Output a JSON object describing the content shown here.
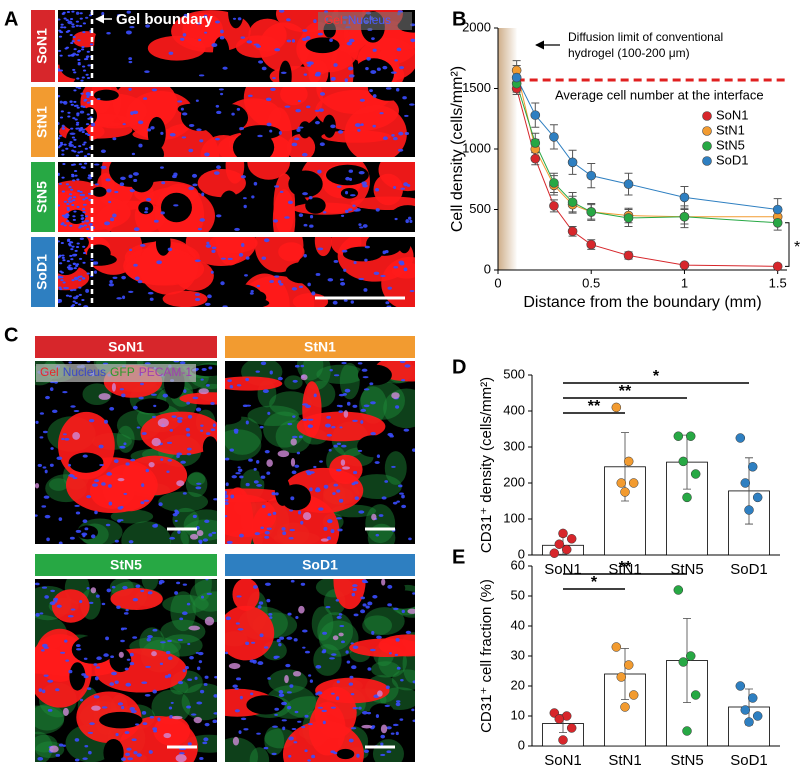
{
  "figure": {
    "panel_labels": [
      "A",
      "B",
      "C",
      "D",
      "E"
    ],
    "group_colors": [
      "#d7262b",
      "#f29b30",
      "#27a844",
      "#2e7fc1"
    ],
    "panel_a": {
      "rows": [
        "SoN1",
        "StN1",
        "StN5",
        "SoD1"
      ],
      "boundary_label": "Gel boundary",
      "legend": [
        {
          "text": "Gel",
          "color": "#ff3030"
        },
        {
          "text": "Nucleus",
          "color": "#4a5cff"
        }
      ]
    },
    "panel_c": {
      "panels": [
        "SoN1",
        "StN1",
        "StN5",
        "SoD1"
      ],
      "legend": [
        {
          "text": "Gel",
          "color": "#e8262b"
        },
        {
          "text": "Nucleus",
          "color": "#3a48c8"
        },
        {
          "text": "GFP",
          "color": "#2a9a2a"
        },
        {
          "text": "PECAM-1",
          "color": "#a040b0"
        }
      ]
    }
  },
  "chart_data": [
    {
      "type": "line",
      "xlabel": "Distance from the boundary (mm)",
      "ylabel": "Cell density (cells/mm²)",
      "x": [
        0.1,
        0.2,
        0.3,
        0.4,
        0.5,
        0.7,
        1.0,
        1.5
      ],
      "series": [
        {
          "name": "SoN1",
          "color": "#d7262b",
          "values": [
            1500,
            920,
            530,
            320,
            210,
            120,
            40,
            30
          ],
          "errors": [
            50,
            50,
            50,
            40,
            40,
            30,
            15,
            10
          ]
        },
        {
          "name": "StN1",
          "color": "#f29b30",
          "values": [
            1650,
            1000,
            700,
            540,
            480,
            450,
            440,
            440
          ],
          "errors": [
            80,
            80,
            80,
            70,
            60,
            60,
            60,
            60
          ]
        },
        {
          "name": "StN5",
          "color": "#27a844",
          "values": [
            1540,
            1050,
            720,
            560,
            480,
            430,
            440,
            390
          ],
          "errors": [
            70,
            80,
            80,
            80,
            70,
            70,
            90,
            60
          ]
        },
        {
          "name": "SoD1",
          "color": "#2e7fc1",
          "values": [
            1590,
            1280,
            1100,
            890,
            780,
            710,
            600,
            500
          ],
          "errors": [
            100,
            100,
            100,
            100,
            100,
            90,
            90,
            90
          ]
        }
      ],
      "xlim": [
        0,
        1.55
      ],
      "ylim": [
        0,
        2000
      ],
      "xticks": [
        0,
        0.5,
        1,
        1.5
      ],
      "yticks": [
        0,
        500,
        1000,
        1500,
        2000
      ],
      "shaded_range": [
        0,
        0.1
      ],
      "reference_line": {
        "value": 1570,
        "color": "#e02020",
        "label": "Average cell number at the interface"
      },
      "annotation": [
        "Diffusion limit of conventional",
        "hydrogel (100-200 μm)"
      ],
      "significance": "*",
      "legend": "right"
    },
    {
      "type": "bar",
      "ylabel": "CD31⁺ density (cells/mm²)",
      "categories": [
        "SoN1",
        "StN1",
        "StN5",
        "SoD1"
      ],
      "colors": [
        "#d7262b",
        "#f29b30",
        "#27a844",
        "#2e7fc1"
      ],
      "values": [
        27,
        245,
        258,
        178
      ],
      "errors": [
        25,
        95,
        75,
        92
      ],
      "points": [
        [
          5,
          15,
          30,
          45,
          60
        ],
        [
          410,
          260,
          200,
          200,
          175
        ],
        [
          330,
          330,
          260,
          225,
          160
        ],
        [
          325,
          245,
          200,
          160,
          125
        ]
      ],
      "ylim": [
        0,
        500
      ],
      "yticks": [
        0,
        100,
        200,
        300,
        400,
        500
      ],
      "brackets": [
        {
          "pair": [
            "SoN1",
            "StN1"
          ],
          "label": "**"
        },
        {
          "pair": [
            "SoN1",
            "StN5"
          ],
          "label": "**"
        },
        {
          "pair": [
            "SoN1",
            "SoD1"
          ],
          "label": "*"
        }
      ]
    },
    {
      "type": "bar",
      "ylabel": "CD31⁺ cell fraction (%)",
      "categories": [
        "SoN1",
        "StN1",
        "StN5",
        "SoD1"
      ],
      "colors": [
        "#d7262b",
        "#f29b30",
        "#27a844",
        "#2e7fc1"
      ],
      "values": [
        7.5,
        24,
        28.5,
        13
      ],
      "errors": [
        3,
        8.5,
        14,
        6
      ],
      "points": [
        [
          11,
          10,
          9,
          6,
          2
        ],
        [
          33,
          27,
          23,
          17,
          13
        ],
        [
          52,
          30,
          28,
          17,
          5
        ],
        [
          20,
          16,
          12,
          10,
          8
        ]
      ],
      "ylim": [
        0,
        60
      ],
      "yticks": [
        0,
        10,
        20,
        30,
        40,
        50,
        60
      ],
      "brackets": [
        {
          "pair": [
            "SoN1",
            "StN1"
          ],
          "label": "*"
        },
        {
          "pair": [
            "SoN1",
            "StN5"
          ],
          "label": "**"
        }
      ]
    }
  ]
}
